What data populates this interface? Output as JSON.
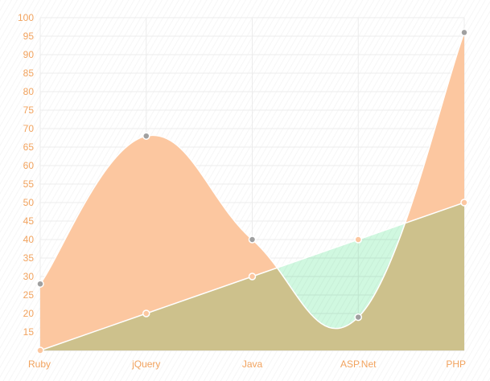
{
  "chart_data": {
    "type": "area",
    "categories": [
      "Ruby",
      "jQuery",
      "Java",
      "ASP.Net",
      "PHP"
    ],
    "ylim": [
      10,
      100
    ],
    "y_ticks": [
      15,
      20,
      25,
      30,
      35,
      40,
      45,
      50,
      55,
      60,
      65,
      70,
      75,
      80,
      85,
      90,
      95,
      100
    ],
    "grid": true,
    "series": [
      {
        "values": [
          28,
          68,
          40,
          19,
          96
        ],
        "fill": "#fcc7a0",
        "stroke": "#ffffff",
        "point_fill": "#a0a0a0",
        "point_stroke": "#ffffff"
      },
      {
        "values": [
          10,
          20,
          30,
          40,
          50
        ],
        "fill": "#c8f7da",
        "stroke": "#ffffff",
        "point_fill": "#fcc7a0",
        "point_stroke": "#ffffff"
      }
    ],
    "overlap_color": "#e3c48f",
    "colors": {
      "tick_label": "#f2a35e",
      "grid": "#ececec",
      "axis": "#dddddd"
    }
  }
}
